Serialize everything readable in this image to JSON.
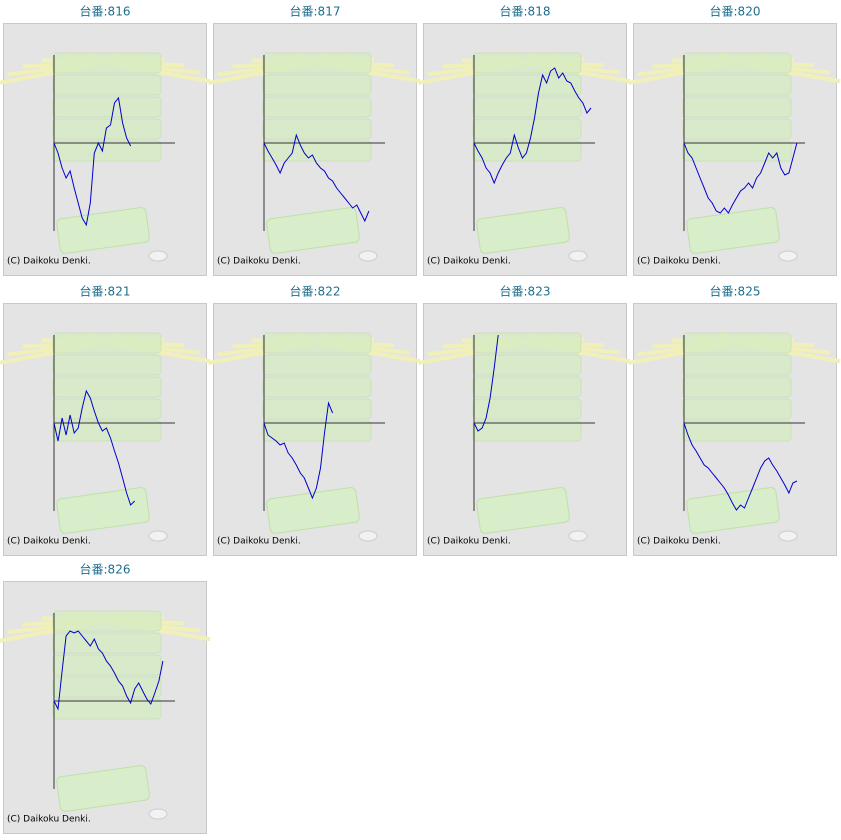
{
  "chart_data": [
    {
      "type": "line",
      "title": "台番:816",
      "footnote": "(C) Daikoku Denki.",
      "color": "#0000cc",
      "xlim": [
        0,
        30
      ],
      "ylim": [
        -88,
        88
      ],
      "values": [
        0,
        -10,
        -25,
        -35,
        -28,
        -45,
        -60,
        -75,
        -82,
        -60,
        -10,
        0,
        -8,
        15,
        18,
        40,
        45,
        20,
        5,
        -3
      ]
    },
    {
      "type": "line",
      "title": "台番:817",
      "footnote": "(C) Daikoku Denki.",
      "color": "#0000cc",
      "xlim": [
        0,
        30
      ],
      "ylim": [
        -88,
        88
      ],
      "values": [
        0,
        -8,
        -15,
        -22,
        -30,
        -20,
        -15,
        -10,
        8,
        -2,
        -10,
        -15,
        -12,
        -20,
        -25,
        -28,
        -35,
        -38,
        -45,
        -50,
        -55,
        -60,
        -65,
        -62,
        -70,
        -78,
        -68
      ]
    },
    {
      "type": "line",
      "title": "台番:818",
      "footnote": "(C) Daikoku Denki.",
      "color": "#0000cc",
      "xlim": [
        0,
        30
      ],
      "ylim": [
        -88,
        88
      ],
      "values": [
        0,
        -8,
        -15,
        -25,
        -30,
        -40,
        -30,
        -22,
        -15,
        -10,
        8,
        -5,
        -15,
        -10,
        5,
        25,
        50,
        68,
        60,
        72,
        75,
        65,
        70,
        62,
        60,
        52,
        45,
        40,
        30,
        35
      ]
    },
    {
      "type": "line",
      "title": "台番:820",
      "footnote": "(C) Daikoku Denki.",
      "color": "#0000cc",
      "xlim": [
        0,
        30
      ],
      "ylim": [
        -88,
        88
      ],
      "values": [
        0,
        -10,
        -15,
        -25,
        -35,
        -45,
        -55,
        -60,
        -68,
        -70,
        -65,
        -70,
        -62,
        -55,
        -48,
        -45,
        -40,
        -45,
        -35,
        -30,
        -20,
        -10,
        -15,
        -10,
        -25,
        -32,
        -30,
        -15,
        0
      ]
    },
    {
      "type": "line",
      "title": "台番:821",
      "footnote": "(C) Daikoku Denki.",
      "color": "#0000cc",
      "xlim": [
        0,
        30
      ],
      "ylim": [
        -88,
        88
      ],
      "values": [
        0,
        -18,
        5,
        -12,
        8,
        -10,
        -5,
        15,
        32,
        25,
        12,
        0,
        -8,
        -5,
        -15,
        -28,
        -40,
        -55,
        -70,
        -82,
        -78
      ]
    },
    {
      "type": "line",
      "title": "台番:822",
      "footnote": "(C) Daikoku Denki.",
      "color": "#0000cc",
      "xlim": [
        0,
        30
      ],
      "ylim": [
        -88,
        88
      ],
      "values": [
        0,
        -12,
        -15,
        -18,
        -22,
        -20,
        -30,
        -35,
        -42,
        -50,
        -55,
        -65,
        -75,
        -65,
        -45,
        -10,
        20,
        10
      ]
    },
    {
      "type": "line",
      "title": "台番:823",
      "footnote": "(C) Daikoku Denki.",
      "color": "#0000cc",
      "xlim": [
        0,
        30
      ],
      "ylim": [
        -88,
        88
      ],
      "values": [
        0,
        -8,
        -5,
        5,
        25,
        55,
        88
      ]
    },
    {
      "type": "line",
      "title": "台番:825",
      "footnote": "(C) Daikoku Denki.",
      "color": "#0000cc",
      "xlim": [
        0,
        30
      ],
      "ylim": [
        -88,
        88
      ],
      "values": [
        0,
        -12,
        -22,
        -28,
        -35,
        -42,
        -45,
        -50,
        -55,
        -60,
        -65,
        -72,
        -80,
        -87,
        -82,
        -85,
        -75,
        -65,
        -55,
        -45,
        -38,
        -35,
        -42,
        -48,
        -55,
        -62,
        -70,
        -60,
        -58
      ]
    },
    {
      "type": "line",
      "title": "台番:826",
      "footnote": "(C) Daikoku Denki.",
      "color": "#0000cc",
      "xlim": [
        0,
        30
      ],
      "ylim": [
        -88,
        88
      ],
      "values": [
        0,
        -8,
        30,
        65,
        70,
        68,
        70,
        65,
        60,
        55,
        62,
        52,
        48,
        40,
        35,
        28,
        20,
        15,
        5,
        -2,
        12,
        18,
        10,
        2,
        -3,
        8,
        20,
        40
      ]
    }
  ]
}
